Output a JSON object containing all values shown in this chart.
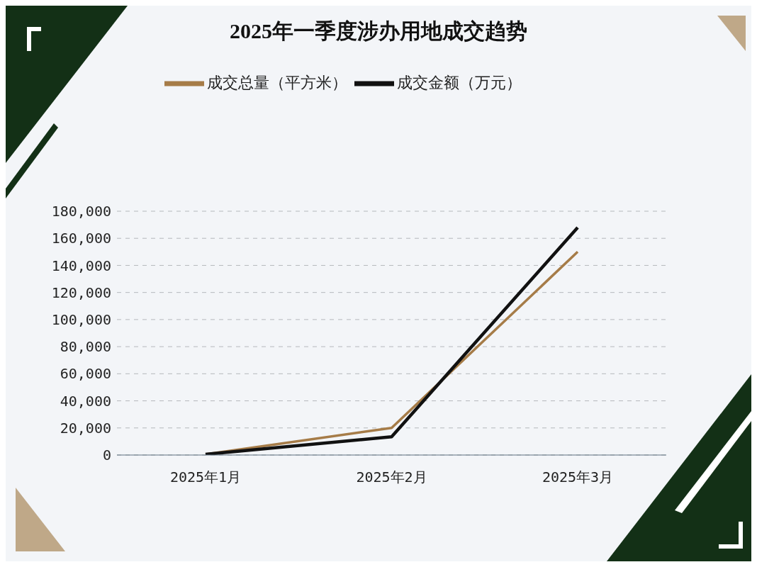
{
  "chart_data": {
    "type": "line",
    "title": "2025年一季度涉办用地成交趋势",
    "categories": [
      "2025年1月",
      "2025年2月",
      "2025年3月"
    ],
    "series": [
      {
        "name": "成交总量（平方米）",
        "color": "#a67c48",
        "values": [
          500,
          20000,
          150000
        ]
      },
      {
        "name": "成交金额（万元）",
        "color": "#111111",
        "values": [
          500,
          13500,
          168000
        ]
      }
    ],
    "ylim": [
      0,
      180000
    ],
    "yticks": [
      0,
      {
        "value": 20000,
        "label": "20,000"
      },
      {
        "value": 40000,
        "label": "40,000"
      },
      {
        "value": 60000,
        "label": "60,000"
      },
      {
        "value": 80000,
        "label": "80,000"
      },
      {
        "value": 100000,
        "label": "100,000"
      },
      {
        "value": 120000,
        "label": "120,000"
      },
      {
        "value": 140000,
        "label": "140,000"
      },
      {
        "value": 160000,
        "label": "160,000"
      },
      {
        "value": 180000,
        "label": "180,000"
      }
    ],
    "grid": "y",
    "legend": "top",
    "marker": "none",
    "line_style": "solid"
  }
}
